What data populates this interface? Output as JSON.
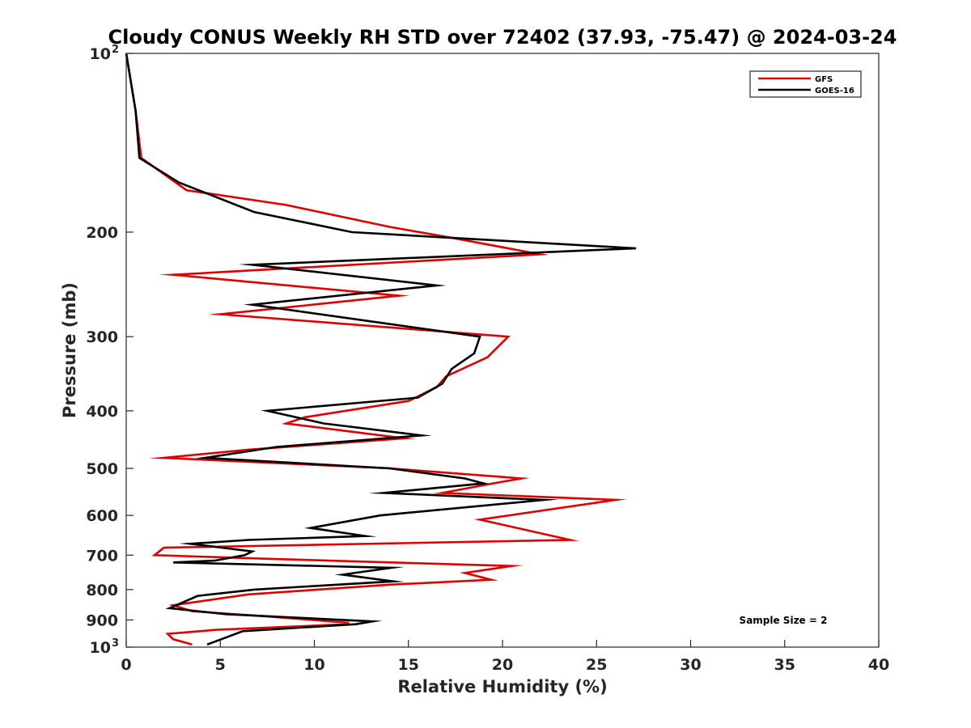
{
  "chart_data": {
    "type": "line",
    "title": "Cloudy CONUS Weekly RH STD over 72402 (37.93, -75.47) @ 2024-03-24",
    "xlabel": "Relative Humidity (%)",
    "ylabel": "Pressure (mb)",
    "xlim": [
      0,
      40
    ],
    "ylim": [
      100,
      1000
    ],
    "y_scale": "log",
    "y_reversed": true,
    "grid": false,
    "legend_position": "top-right",
    "x_ticks": [
      "0",
      "5",
      "10",
      "15",
      "20",
      "25",
      "30",
      "35",
      "40"
    ],
    "y_ticks": [
      {
        "value": 100,
        "label": "10",
        "sup": "2"
      },
      {
        "value": 200,
        "label": "200"
      },
      {
        "value": 300,
        "label": "300"
      },
      {
        "value": 400,
        "label": "400"
      },
      {
        "value": 500,
        "label": "500"
      },
      {
        "value": 600,
        "label": "600"
      },
      {
        "value": 700,
        "label": "700"
      },
      {
        "value": 800,
        "label": "800"
      },
      {
        "value": 900,
        "label": "900"
      },
      {
        "value": 1000,
        "label": "10",
        "sup": "3"
      }
    ],
    "annotation": "Sample Size = 2",
    "series": [
      {
        "name": "GFS",
        "color": "#e00000",
        "points": [
          [
            0.0,
            100
          ],
          [
            0.5,
            125
          ],
          [
            0.8,
            150
          ],
          [
            3.2,
            170
          ],
          [
            8.5,
            180
          ],
          [
            14.0,
            196
          ],
          [
            17.5,
            205
          ],
          [
            22.0,
            218
          ],
          [
            2.5,
            236
          ],
          [
            14.5,
            256
          ],
          [
            5.0,
            275
          ],
          [
            20.3,
            300
          ],
          [
            19.2,
            325
          ],
          [
            17.0,
            350
          ],
          [
            16.5,
            365
          ],
          [
            15.0,
            385
          ],
          [
            9.5,
            410
          ],
          [
            8.5,
            420
          ],
          [
            14.8,
            445
          ],
          [
            6.5,
            465
          ],
          [
            2.0,
            480
          ],
          [
            14.0,
            500
          ],
          [
            21.0,
            520
          ],
          [
            19.5,
            530
          ],
          [
            16.8,
            550
          ],
          [
            26.0,
            565
          ],
          [
            18.8,
            610
          ],
          [
            23.6,
            660
          ],
          [
            2.0,
            680
          ],
          [
            1.5,
            700
          ],
          [
            7.5,
            710
          ],
          [
            20.5,
            730
          ],
          [
            18.0,
            750
          ],
          [
            19.4,
            770
          ],
          [
            14.0,
            785
          ],
          [
            6.5,
            815
          ],
          [
            2.5,
            850
          ],
          [
            3.5,
            870
          ],
          [
            8.0,
            890
          ],
          [
            11.8,
            910
          ],
          [
            11.8,
            915
          ],
          [
            4.8,
            935
          ],
          [
            2.2,
            950
          ],
          [
            2.5,
            970
          ],
          [
            3.5,
            990
          ]
        ]
      },
      {
        "name": "GOES-16",
        "color": "#000000",
        "points": [
          [
            0.0,
            100
          ],
          [
            0.5,
            125
          ],
          [
            0.7,
            150
          ],
          [
            2.8,
            165
          ],
          [
            6.8,
            185
          ],
          [
            12.0,
            200
          ],
          [
            27.1,
            213
          ],
          [
            6.7,
            227
          ],
          [
            16.5,
            246
          ],
          [
            6.7,
            265
          ],
          [
            18.8,
            300
          ],
          [
            18.5,
            320
          ],
          [
            17.3,
            340
          ],
          [
            16.8,
            360
          ],
          [
            15.5,
            380
          ],
          [
            7.5,
            400
          ],
          [
            10.5,
            420
          ],
          [
            15.7,
            440
          ],
          [
            8.0,
            460
          ],
          [
            4.2,
            480
          ],
          [
            14.0,
            500
          ],
          [
            18.0,
            520
          ],
          [
            19.0,
            530
          ],
          [
            13.7,
            550
          ],
          [
            22.2,
            565
          ],
          [
            13.5,
            600
          ],
          [
            9.8,
            630
          ],
          [
            12.7,
            650
          ],
          [
            6.5,
            660
          ],
          [
            3.4,
            670
          ],
          [
            6.7,
            690
          ],
          [
            6.3,
            700
          ],
          [
            4.7,
            715
          ],
          [
            2.5,
            720
          ],
          [
            14.1,
            735
          ],
          [
            11.5,
            755
          ],
          [
            14.2,
            775
          ],
          [
            6.8,
            800
          ],
          [
            3.8,
            820
          ],
          [
            2.3,
            860
          ],
          [
            5.3,
            880
          ],
          [
            13.1,
            905
          ],
          [
            12.2,
            915
          ],
          [
            6.2,
            940
          ],
          [
            4.3,
            990
          ]
        ]
      }
    ]
  }
}
